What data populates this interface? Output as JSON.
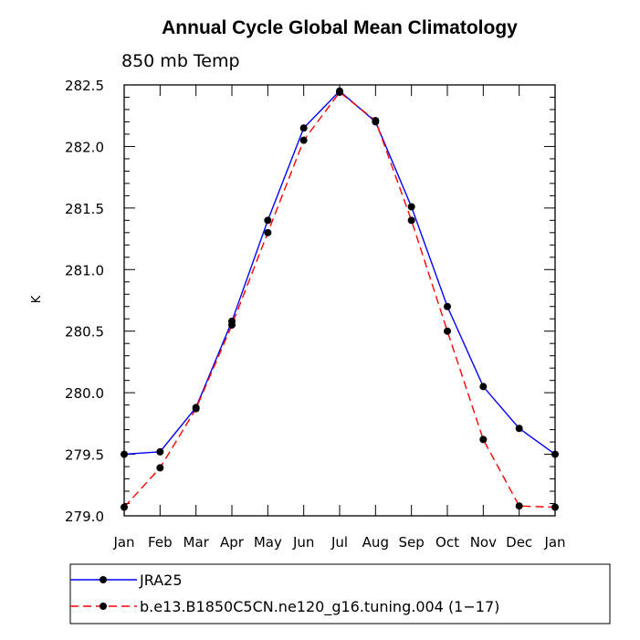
{
  "chart_data": {
    "type": "line",
    "title": "Annual Cycle Global Mean Climatology",
    "subtitle": "850 mb Temp",
    "xlabel": "",
    "ylabel": "K",
    "categories": [
      "Jan",
      "Feb",
      "Mar",
      "Apr",
      "May",
      "Jun",
      "Jul",
      "Aug",
      "Sep",
      "Oct",
      "Nov",
      "Dec",
      "Jan"
    ],
    "ylim": [
      279.0,
      282.5
    ],
    "yticks": [
      "279.0",
      "279.5",
      "280.0",
      "280.5",
      "281.0",
      "281.5",
      "282.0",
      "282.5"
    ],
    "series": [
      {
        "name": "JRA25",
        "color": "#0000ff",
        "dash": "solid",
        "values": [
          279.5,
          279.52,
          279.88,
          280.58,
          281.4,
          282.15,
          282.45,
          282.2,
          281.51,
          280.7,
          280.05,
          279.71,
          279.5
        ]
      },
      {
        "name": "b.e13.B1850C5CN.ne120_g16.tuning.004 (1−17)",
        "color": "#ff0000",
        "dash": "dashed",
        "values": [
          279.07,
          279.39,
          279.87,
          280.55,
          281.3,
          282.05,
          282.44,
          282.21,
          281.4,
          280.5,
          279.62,
          279.08,
          279.07
        ]
      }
    ],
    "legend_position": "bottom"
  }
}
